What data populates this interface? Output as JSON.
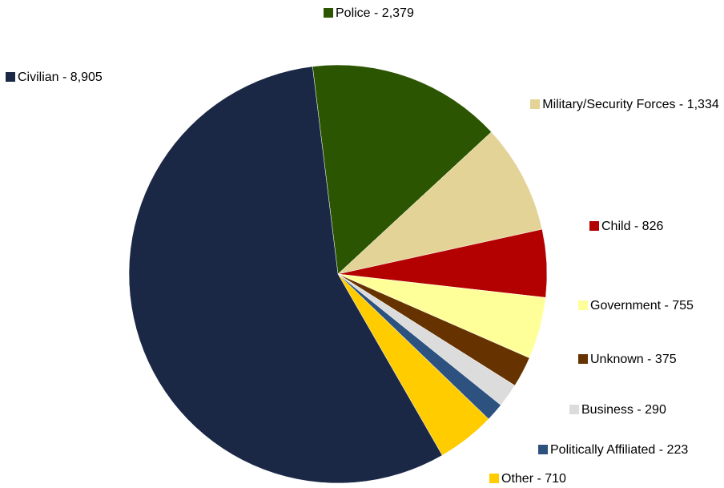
{
  "chart_data": {
    "type": "pie",
    "title": "",
    "slices": [
      {
        "label": "Police - 2,379",
        "name": "Police",
        "value": 2379,
        "color": "#2b5500"
      },
      {
        "label": "Military/Security Forces - 1,334",
        "name": "Military/Security Forces",
        "value": 1334,
        "color": "#e3d396"
      },
      {
        "label": "Child - 826",
        "name": "Child",
        "value": 826,
        "color": "#b30000"
      },
      {
        "label": "Government - 755",
        "name": "Government",
        "value": 755,
        "color": "#ffff99"
      },
      {
        "label": "Unknown - 375",
        "name": "Unknown",
        "value": 375,
        "color": "#663300"
      },
      {
        "label": "Business - 290",
        "name": "Business",
        "value": 290,
        "color": "#dcdcdc"
      },
      {
        "label": "Politically Affiliated - 223",
        "name": "Politically Affiliated",
        "value": 223,
        "color": "#2e5280"
      },
      {
        "label": "Other - 710",
        "name": "Other",
        "value": 710,
        "color": "#ffcc00"
      },
      {
        "label": "Civilian - 8,905",
        "name": "Civilian",
        "value": 8905,
        "color": "#1b2845"
      }
    ]
  }
}
